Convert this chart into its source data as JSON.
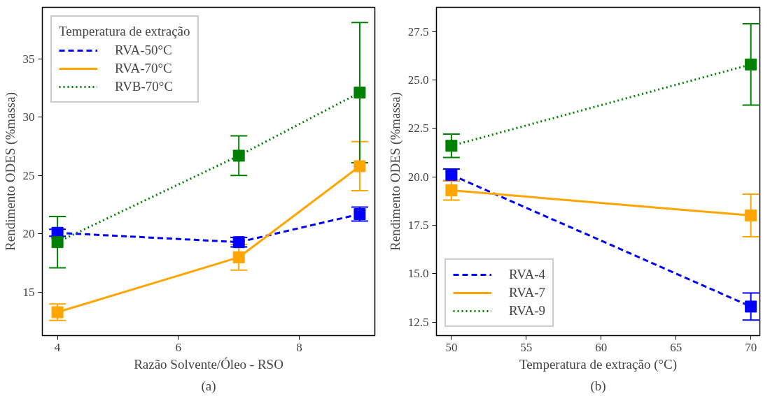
{
  "chart_data": [
    {
      "type": "line",
      "xlabel": "Razão Solvente/Óleo - RSO",
      "ylabel": "Rendimento ODES (%massa)",
      "annotations": [
        "(a)"
      ],
      "legend_title": "Temperatura de extração",
      "legend": "top left",
      "grid": false,
      "marker": "square",
      "x": [
        4,
        7,
        9
      ],
      "xlim": [
        3.75,
        9.25
      ],
      "xticks": [
        4,
        6,
        8
      ],
      "ylim": [
        11.3,
        39.4
      ],
      "yticks": [
        15,
        20,
        25,
        30,
        35
      ],
      "series": [
        {
          "name": "RVA-50°C",
          "color": "#0000ff",
          "line_style": "dashed",
          "values": [
            20.1,
            19.3,
            21.7
          ],
          "errors": [
            0.3,
            0.4,
            0.6
          ]
        },
        {
          "name": "RVA-70°C",
          "color": "#ffa500",
          "line_style": "solid",
          "values": [
            13.3,
            18.0,
            25.8
          ],
          "errors": [
            0.7,
            1.1,
            2.1
          ]
        },
        {
          "name": "RVB-70°C",
          "color": "#008000",
          "line_style": "dotted",
          "values": [
            19.3,
            26.7,
            32.1
          ],
          "errors": [
            2.2,
            1.7,
            6.0
          ]
        }
      ]
    },
    {
      "type": "line",
      "xlabel": "Temperatura de extração (°C)",
      "ylabel": "Rendimento ODES (%massa)",
      "annotations": [
        "(b)"
      ],
      "legend": "bottom left",
      "grid": false,
      "marker": "square",
      "x": [
        50,
        70
      ],
      "xlim": [
        49,
        70.6
      ],
      "xticks": [
        50,
        55,
        60,
        65,
        70
      ],
      "ylim": [
        11.8,
        28.75
      ],
      "yticks": [
        {
          "value": 12.5,
          "label": "12.5"
        },
        {
          "value": 15,
          "label": "15.0"
        },
        {
          "value": 17.5,
          "label": "17.5"
        },
        {
          "value": 20,
          "label": "20.0"
        },
        {
          "value": 22.5,
          "label": "22.5"
        },
        {
          "value": 25,
          "label": "25.0"
        },
        {
          "value": 27.5,
          "label": "27.5"
        }
      ],
      "series": [
        {
          "name": "RVA-4",
          "color": "#0000ff",
          "line_style": "dashed",
          "values": [
            20.1,
            13.3
          ],
          "errors": [
            0.3,
            0.7
          ]
        },
        {
          "name": "RVA-7",
          "color": "#ffa500",
          "line_style": "solid",
          "values": [
            19.3,
            18.0
          ],
          "errors": [
            0.5,
            1.1
          ]
        },
        {
          "name": "RVA-9",
          "color": "#008000",
          "line_style": "dotted",
          "values": [
            21.6,
            25.8
          ],
          "errors": [
            0.6,
            2.1
          ]
        }
      ]
    }
  ]
}
